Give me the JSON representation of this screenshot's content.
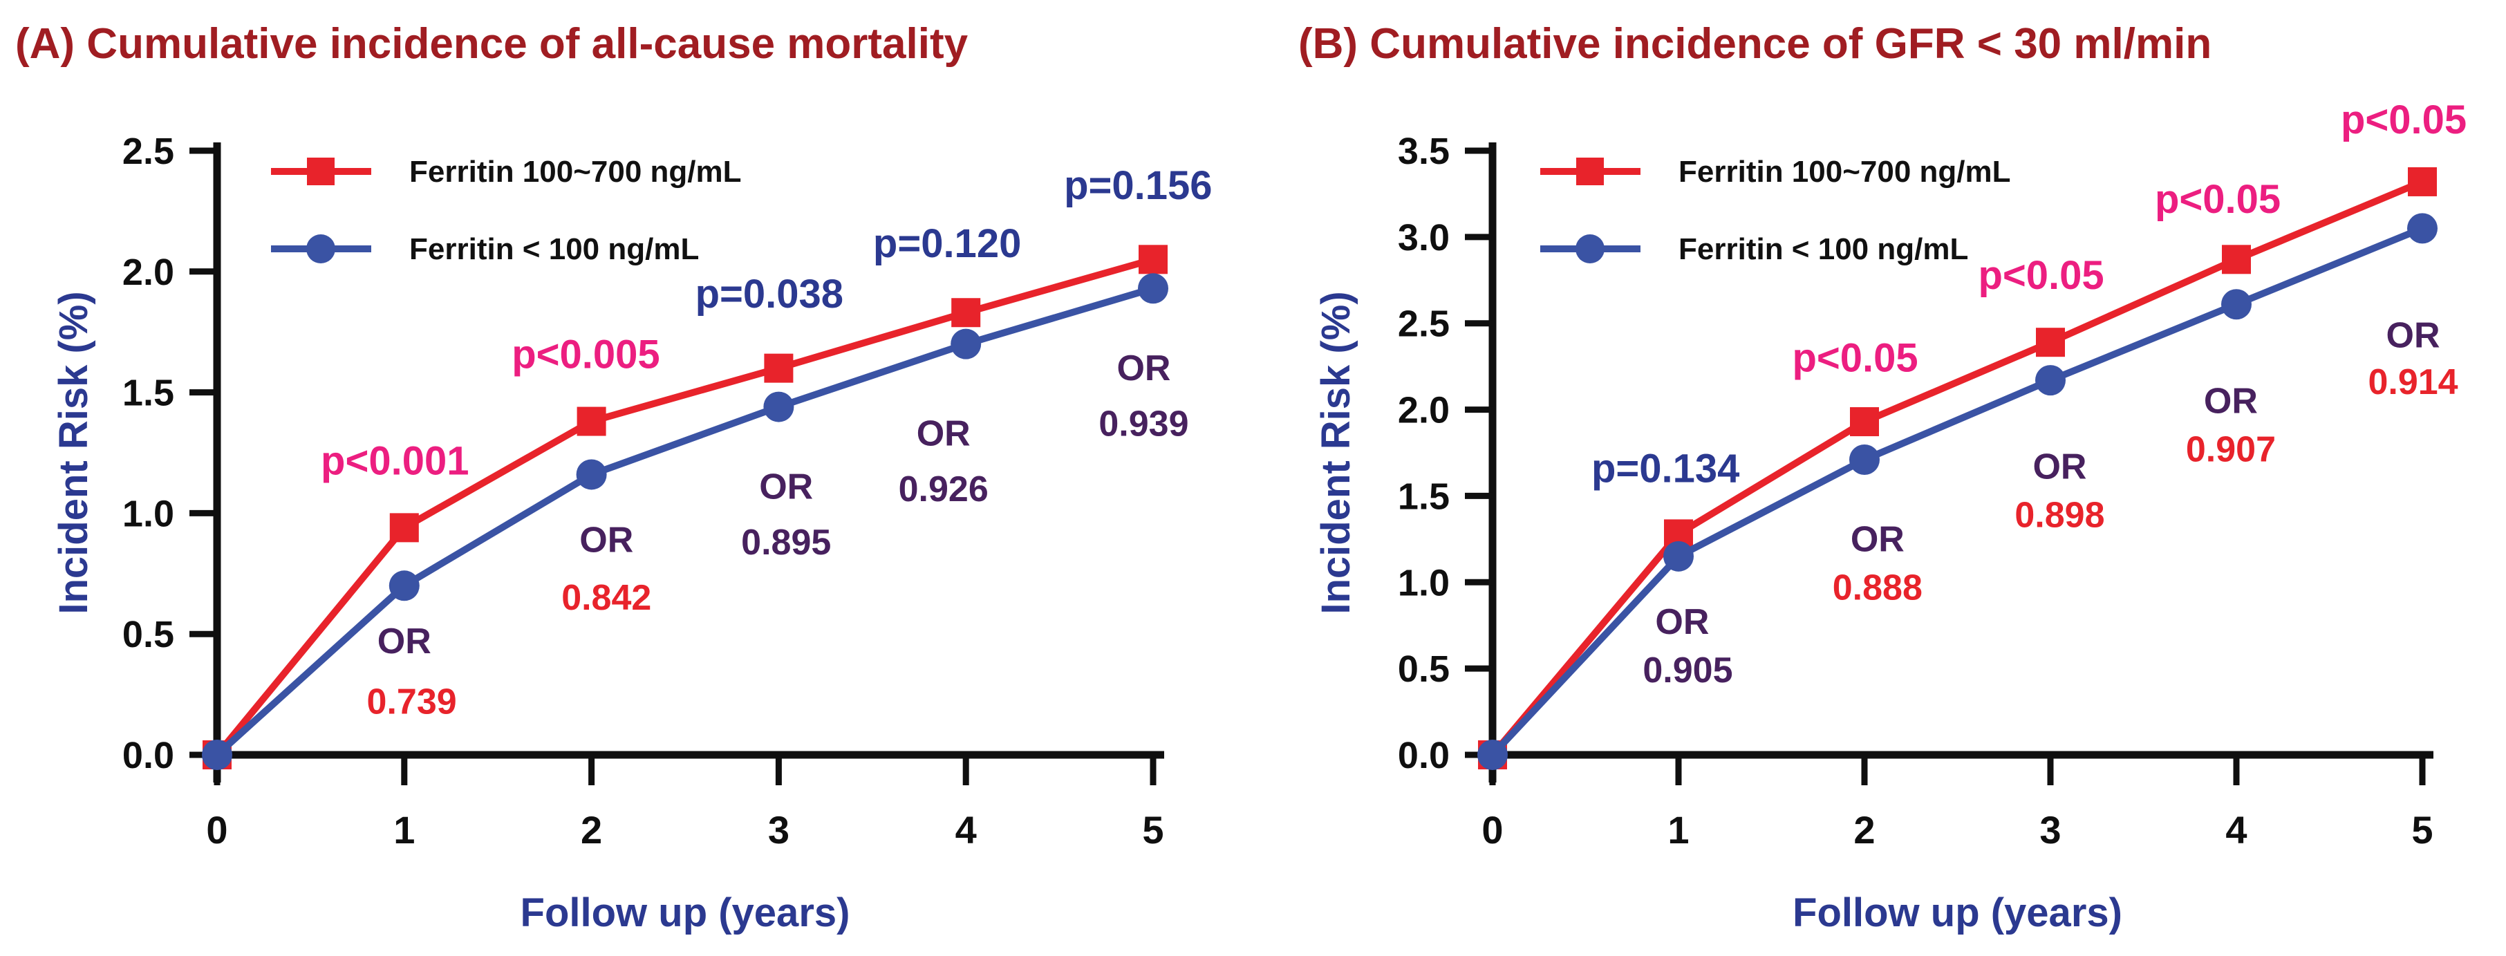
{
  "figure": {
    "background": "#ffffff"
  },
  "colors": {
    "title_red": "#A01D22",
    "series_red": "#E8232B",
    "series_blue": "#3A53A4",
    "magenta": "#EC1E80",
    "navy": "#2B3990",
    "purple": "#47215E",
    "value_red": "#E8232B",
    "axis_black": "#0F0F0F",
    "tick_label_black": "#0F0F0F",
    "legend_text_black": "#111111"
  },
  "chart_data": [
    {
      "type": "line",
      "title": "(A) Cumulative incidence of all-cause mortality",
      "xlabel": "Follow up (years)",
      "ylabel": "Incident Risk (%)",
      "x": [
        0,
        1,
        2,
        3,
        4,
        5
      ],
      "xlim": [
        0,
        5
      ],
      "ylim": [
        0,
        2.5
      ],
      "ytick_step": 0.5,
      "yticks": [
        "0.0",
        "0.5",
        "1.0",
        "1.5",
        "2.0",
        "2.5"
      ],
      "xticks": [
        "0",
        "1",
        "2",
        "3",
        "4",
        "5"
      ],
      "grid": false,
      "legend_position": "top-left-inside",
      "series": [
        {
          "name": "Ferritin 100~700 ng/mL",
          "color_key": "series_red",
          "marker": "square",
          "values": [
            0,
            0.94,
            1.38,
            1.6,
            1.83,
            2.05
          ]
        },
        {
          "name": "Ferritin < 100 ng/mL",
          "color_key": "series_blue",
          "marker": "circle",
          "values": [
            0,
            0.7,
            1.16,
            1.44,
            1.7,
            1.93
          ]
        }
      ],
      "annotations": [
        {
          "text": "p<0.001",
          "x": 0.95,
          "y": 1.16,
          "color_key": "magenta",
          "kind": "pvalue"
        },
        {
          "text": "OR",
          "x": 1.0,
          "y": 0.42,
          "color_key": "purple",
          "kind": "or-label"
        },
        {
          "text": "0.739",
          "x": 1.04,
          "y": 0.17,
          "color_key": "value_red",
          "kind": "or-value"
        },
        {
          "text": "p<0.005",
          "x": 1.97,
          "y": 1.6,
          "color_key": "magenta",
          "kind": "pvalue"
        },
        {
          "text": "OR",
          "x": 2.08,
          "y": 0.84,
          "color_key": "purple",
          "kind": "or-label"
        },
        {
          "text": "0.842",
          "x": 2.08,
          "y": 0.6,
          "color_key": "value_red",
          "kind": "or-value"
        },
        {
          "text": "p=0.038",
          "x": 2.95,
          "y": 1.85,
          "color_key": "navy",
          "kind": "pvalue"
        },
        {
          "text": "OR",
          "x": 3.04,
          "y": 1.06,
          "color_key": "purple",
          "kind": "or-label"
        },
        {
          "text": "0.895",
          "x": 3.04,
          "y": 0.83,
          "color_key": "purple",
          "kind": "or-value"
        },
        {
          "text": "p=0.120",
          "x": 3.9,
          "y": 2.06,
          "color_key": "navy",
          "kind": "pvalue"
        },
        {
          "text": "OR",
          "x": 3.88,
          "y": 1.28,
          "color_key": "purple",
          "kind": "or-label"
        },
        {
          "text": "0.926",
          "x": 3.88,
          "y": 1.05,
          "color_key": "purple",
          "kind": "or-value"
        },
        {
          "text": "p=0.156",
          "x": 4.92,
          "y": 2.3,
          "color_key": "navy",
          "kind": "pvalue"
        },
        {
          "text": "OR",
          "x": 4.95,
          "y": 1.55,
          "color_key": "purple",
          "kind": "or-label"
        },
        {
          "text": "0.939",
          "x": 4.95,
          "y": 1.32,
          "color_key": "purple",
          "kind": "or-value"
        }
      ]
    },
    {
      "type": "line",
      "title": "(B) Cumulative incidence of GFR < 30 ml/min",
      "xlabel": "Follow up (years)",
      "ylabel": "Incident Risk (%)",
      "x": [
        0,
        1,
        2,
        3,
        4,
        5
      ],
      "xlim": [
        0,
        5
      ],
      "ylim": [
        0,
        3.5
      ],
      "ytick_step": 0.5,
      "yticks": [
        "0.0",
        "0.5",
        "1.0",
        "1.5",
        "2.0",
        "2.5",
        "3.0",
        "3.5"
      ],
      "xticks": [
        "0",
        "1",
        "2",
        "3",
        "4",
        "5"
      ],
      "grid": false,
      "legend_position": "top-left-inside",
      "series": [
        {
          "name": "Ferritin 100~700 ng/mL",
          "color_key": "series_red",
          "marker": "square",
          "values": [
            0,
            1.28,
            1.93,
            2.39,
            2.87,
            3.32
          ]
        },
        {
          "name": "Ferritin < 100 ng/mL",
          "color_key": "series_blue",
          "marker": "circle",
          "values": [
            0,
            1.15,
            1.71,
            2.17,
            2.61,
            3.05
          ]
        }
      ],
      "annotations": [
        {
          "text": "p=0.134",
          "x": 0.93,
          "y": 1.58,
          "color_key": "navy",
          "kind": "pvalue"
        },
        {
          "text": "OR",
          "x": 1.02,
          "y": 0.7,
          "color_key": "purple",
          "kind": "or-label"
        },
        {
          "text": "0.905",
          "x": 1.05,
          "y": 0.42,
          "color_key": "purple",
          "kind": "or-value"
        },
        {
          "text": "p<0.05",
          "x": 1.95,
          "y": 2.22,
          "color_key": "magenta",
          "kind": "pvalue"
        },
        {
          "text": "OR",
          "x": 2.07,
          "y": 1.18,
          "color_key": "purple",
          "kind": "or-label"
        },
        {
          "text": "0.888",
          "x": 2.07,
          "y": 0.9,
          "color_key": "value_red",
          "kind": "or-value"
        },
        {
          "text": "p<0.05",
          "x": 2.95,
          "y": 2.7,
          "color_key": "magenta",
          "kind": "pvalue"
        },
        {
          "text": "OR",
          "x": 3.05,
          "y": 1.6,
          "color_key": "purple",
          "kind": "or-label"
        },
        {
          "text": "0.898",
          "x": 3.05,
          "y": 1.32,
          "color_key": "value_red",
          "kind": "or-value"
        },
        {
          "text": "p<0.05",
          "x": 3.9,
          "y": 3.14,
          "color_key": "magenta",
          "kind": "pvalue"
        },
        {
          "text": "OR",
          "x": 3.97,
          "y": 1.98,
          "color_key": "purple",
          "kind": "or-label"
        },
        {
          "text": "0.907",
          "x": 3.97,
          "y": 1.7,
          "color_key": "value_red",
          "kind": "or-value"
        },
        {
          "text": "p<0.05",
          "x": 4.9,
          "y": 3.6,
          "color_key": "magenta",
          "kind": "pvalue"
        },
        {
          "text": "OR",
          "x": 4.95,
          "y": 2.36,
          "color_key": "purple",
          "kind": "or-label"
        },
        {
          "text": "0.914",
          "x": 4.95,
          "y": 2.09,
          "color_key": "value_red",
          "kind": "or-value"
        }
      ]
    }
  ]
}
